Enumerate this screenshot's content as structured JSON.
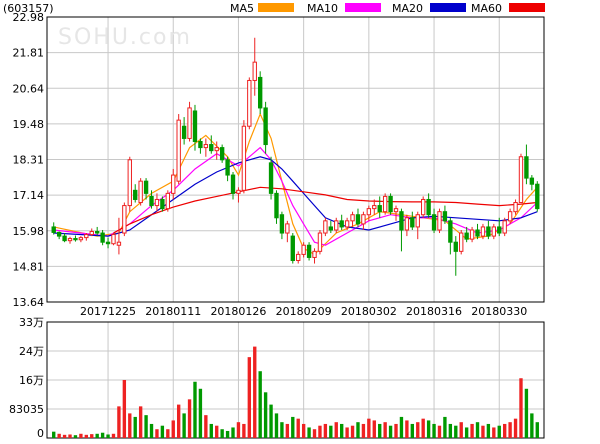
{
  "header": {
    "code": "(603157)",
    "legend": [
      {
        "label": "MA5",
        "color": "#ff9900"
      },
      {
        "label": "MA10",
        "color": "#ff00ff"
      },
      {
        "label": "MA20",
        "color": "#0000cc"
      },
      {
        "label": "MA60",
        "color": "#ee0000"
      }
    ]
  },
  "watermark": "SOHU.com",
  "colors": {
    "up": "#ee2222",
    "down": "#009900",
    "grid": "#c8c8c8",
    "axis": "#000000"
  },
  "chart_data": [
    {
      "type": "candlestick",
      "y_ticks": [
        "22.98",
        "21.81",
        "20.64",
        "19.48",
        "18.31",
        "17.14",
        "15.98",
        "14.81",
        "13.64"
      ],
      "ylim": [
        13.64,
        22.98
      ],
      "x_tick_labels": [
        "20171225",
        "20180111",
        "20180126",
        "20180209",
        "20180302",
        "20180316",
        "20180330"
      ],
      "x_tick_index": [
        10,
        22,
        34,
        46,
        58,
        70,
        82
      ],
      "ohlc": [
        [
          16.1,
          16.25,
          15.85,
          15.92
        ],
        [
          15.92,
          15.95,
          15.7,
          15.8
        ],
        [
          15.8,
          15.9,
          15.6,
          15.65
        ],
        [
          15.65,
          15.78,
          15.55,
          15.72
        ],
        [
          15.72,
          15.82,
          15.62,
          15.68
        ],
        [
          15.68,
          15.8,
          15.6,
          15.75
        ],
        [
          15.75,
          15.9,
          15.65,
          15.85
        ],
        [
          15.85,
          16.05,
          15.8,
          15.95
        ],
        [
          15.95,
          16.1,
          15.82,
          15.9
        ],
        [
          15.9,
          16.0,
          15.5,
          15.6
        ],
        [
          15.6,
          15.75,
          15.4,
          15.55
        ],
        [
          15.55,
          15.9,
          15.5,
          15.85
        ],
        [
          15.5,
          16.4,
          15.2,
          15.6
        ],
        [
          15.9,
          16.9,
          15.8,
          16.8
        ],
        [
          16.8,
          18.4,
          16.6,
          18.3
        ],
        [
          17.3,
          17.5,
          16.9,
          17.0
        ],
        [
          16.9,
          17.7,
          16.8,
          17.6
        ],
        [
          17.6,
          17.7,
          17.0,
          17.2
        ],
        [
          17.1,
          17.3,
          16.7,
          16.8
        ],
        [
          16.8,
          17.2,
          16.6,
          17.0
        ],
        [
          17.0,
          17.1,
          16.6,
          16.7
        ],
        [
          16.7,
          17.3,
          16.6,
          17.2
        ],
        [
          17.2,
          18.0,
          17.0,
          17.8
        ],
        [
          17.6,
          19.8,
          17.5,
          19.6
        ],
        [
          19.4,
          19.7,
          18.8,
          19.0
        ],
        [
          19.0,
          20.2,
          18.9,
          20.0
        ],
        [
          19.9,
          20.1,
          18.6,
          18.9
        ],
        [
          18.9,
          19.0,
          18.5,
          18.7
        ],
        [
          18.7,
          19.0,
          18.4,
          18.8
        ],
        [
          18.8,
          19.1,
          18.5,
          18.6
        ],
        [
          18.6,
          18.9,
          18.3,
          18.7
        ],
        [
          18.7,
          18.8,
          18.2,
          18.3
        ],
        [
          18.3,
          18.4,
          17.6,
          17.8
        ],
        [
          17.8,
          17.9,
          17.0,
          17.2
        ],
        [
          17.2,
          17.4,
          16.9,
          17.3
        ],
        [
          17.3,
          19.6,
          17.2,
          19.4
        ],
        [
          19.4,
          21.0,
          19.3,
          20.9
        ],
        [
          20.9,
          22.3,
          20.4,
          21.5
        ],
        [
          21.0,
          21.2,
          19.8,
          20.0
        ],
        [
          20.0,
          20.2,
          18.5,
          18.8
        ],
        [
          18.2,
          18.4,
          17.0,
          17.2
        ],
        [
          17.2,
          17.3,
          16.2,
          16.4
        ],
        [
          16.5,
          16.6,
          15.7,
          15.9
        ],
        [
          15.9,
          16.3,
          15.6,
          16.2
        ],
        [
          15.8,
          15.9,
          14.9,
          15.0
        ],
        [
          15.0,
          15.3,
          14.9,
          15.2
        ],
        [
          15.2,
          15.6,
          15.1,
          15.5
        ],
        [
          15.5,
          15.6,
          15.0,
          15.1
        ],
        [
          15.1,
          15.4,
          14.9,
          15.3
        ],
        [
          15.3,
          16.0,
          15.2,
          15.9
        ],
        [
          15.9,
          16.4,
          15.8,
          16.3
        ],
        [
          16.1,
          16.3,
          15.9,
          16.0
        ],
        [
          16.0,
          16.4,
          15.9,
          16.3
        ],
        [
          16.3,
          16.5,
          16.0,
          16.1
        ],
        [
          16.1,
          16.4,
          16.0,
          16.3
        ],
        [
          16.3,
          16.6,
          16.1,
          16.5
        ],
        [
          16.5,
          16.7,
          16.1,
          16.2
        ],
        [
          16.2,
          16.6,
          16.0,
          16.5
        ],
        [
          16.5,
          16.8,
          16.3,
          16.7
        ],
        [
          16.7,
          17.0,
          16.5,
          16.8
        ],
        [
          16.8,
          17.1,
          16.4,
          16.6
        ],
        [
          16.6,
          17.2,
          16.5,
          17.1
        ],
        [
          17.1,
          17.2,
          16.5,
          16.6
        ],
        [
          16.6,
          16.8,
          16.3,
          16.7
        ],
        [
          16.6,
          16.7,
          15.3,
          16.0
        ],
        [
          16.0,
          16.5,
          15.8,
          16.4
        ],
        [
          16.4,
          16.6,
          16.0,
          16.1
        ],
        [
          16.1,
          16.6,
          15.7,
          16.5
        ],
        [
          16.5,
          17.1,
          16.4,
          17.0
        ],
        [
          17.0,
          17.2,
          16.4,
          16.5
        ],
        [
          16.5,
          16.7,
          15.9,
          16.0
        ],
        [
          16.0,
          16.7,
          15.9,
          16.6
        ],
        [
          16.6,
          16.8,
          16.2,
          16.3
        ],
        [
          16.3,
          16.4,
          15.2,
          15.6
        ],
        [
          15.6,
          15.8,
          14.5,
          15.3
        ],
        [
          15.3,
          16.0,
          15.2,
          15.9
        ],
        [
          15.9,
          16.1,
          15.6,
          15.7
        ],
        [
          15.7,
          16.1,
          15.6,
          16.0
        ],
        [
          16.0,
          16.2,
          15.7,
          15.8
        ],
        [
          15.8,
          16.2,
          15.7,
          16.1
        ],
        [
          16.1,
          16.3,
          15.7,
          15.8
        ],
        [
          15.8,
          16.2,
          15.7,
          16.1
        ],
        [
          16.1,
          16.4,
          15.8,
          15.9
        ],
        [
          15.9,
          16.4,
          15.8,
          16.3
        ],
        [
          16.3,
          16.7,
          16.2,
          16.6
        ],
        [
          16.6,
          17.0,
          16.5,
          16.9
        ],
        [
          16.9,
          18.5,
          16.9,
          18.4
        ],
        [
          18.4,
          18.8,
          17.5,
          17.7
        ],
        [
          17.7,
          17.8,
          17.3,
          17.5
        ],
        [
          17.5,
          17.6,
          16.6,
          16.7
        ]
      ],
      "ma": {
        "MA5": [
          [
            0,
            16.1
          ],
          [
            8,
            15.8
          ],
          [
            12,
            15.9
          ],
          [
            14,
            16.6
          ],
          [
            18,
            17.2
          ],
          [
            22,
            17.6
          ],
          [
            25,
            18.7
          ],
          [
            28,
            19.1
          ],
          [
            32,
            18.4
          ],
          [
            34,
            17.8
          ],
          [
            36,
            18.9
          ],
          [
            38,
            19.8
          ],
          [
            40,
            19.0
          ],
          [
            42,
            17.6
          ],
          [
            44,
            16.2
          ],
          [
            46,
            15.4
          ],
          [
            48,
            15.2
          ],
          [
            52,
            15.9
          ],
          [
            56,
            16.2
          ],
          [
            60,
            16.6
          ],
          [
            64,
            16.5
          ],
          [
            68,
            16.4
          ],
          [
            72,
            16.3
          ],
          [
            76,
            15.7
          ],
          [
            80,
            15.8
          ],
          [
            84,
            16.2
          ],
          [
            87,
            17.0
          ],
          [
            89,
            17.4
          ]
        ],
        "MA10": [
          [
            0,
            16.0
          ],
          [
            10,
            15.8
          ],
          [
            14,
            16.2
          ],
          [
            18,
            16.8
          ],
          [
            22,
            17.3
          ],
          [
            26,
            18.0
          ],
          [
            30,
            18.5
          ],
          [
            34,
            18.1
          ],
          [
            36,
            18.4
          ],
          [
            38,
            18.7
          ],
          [
            40,
            18.3
          ],
          [
            42,
            17.6
          ],
          [
            44,
            16.8
          ],
          [
            46,
            16.2
          ],
          [
            48,
            15.6
          ],
          [
            50,
            15.5
          ],
          [
            54,
            15.9
          ],
          [
            58,
            16.3
          ],
          [
            62,
            16.5
          ],
          [
            66,
            16.4
          ],
          [
            70,
            16.4
          ],
          [
            74,
            16.2
          ],
          [
            78,
            15.9
          ],
          [
            82,
            16.0
          ],
          [
            86,
            16.4
          ],
          [
            89,
            16.9
          ]
        ],
        "MA20": [
          [
            0,
            15.9
          ],
          [
            10,
            15.8
          ],
          [
            14,
            16.0
          ],
          [
            18,
            16.5
          ],
          [
            22,
            17.0
          ],
          [
            26,
            17.5
          ],
          [
            30,
            17.9
          ],
          [
            34,
            18.2
          ],
          [
            38,
            18.4
          ],
          [
            40,
            18.3
          ],
          [
            42,
            18.0
          ],
          [
            44,
            17.6
          ],
          [
            46,
            17.2
          ],
          [
            48,
            16.8
          ],
          [
            50,
            16.4
          ],
          [
            54,
            16.1
          ],
          [
            58,
            16.0
          ],
          [
            62,
            16.2
          ],
          [
            66,
            16.4
          ],
          [
            70,
            16.45
          ],
          [
            74,
            16.4
          ],
          [
            78,
            16.35
          ],
          [
            82,
            16.3
          ],
          [
            86,
            16.4
          ],
          [
            89,
            16.6
          ]
        ],
        "MA60": [
          [
            11,
            15.9
          ],
          [
            14,
            16.2
          ],
          [
            18,
            16.5
          ],
          [
            22,
            16.75
          ],
          [
            26,
            16.95
          ],
          [
            30,
            17.1
          ],
          [
            34,
            17.25
          ],
          [
            38,
            17.4
          ],
          [
            42,
            17.35
          ],
          [
            46,
            17.25
          ],
          [
            50,
            17.15
          ],
          [
            54,
            17.0
          ],
          [
            58,
            16.95
          ],
          [
            62,
            16.93
          ],
          [
            66,
            16.92
          ],
          [
            70,
            16.92
          ],
          [
            74,
            16.9
          ],
          [
            78,
            16.85
          ],
          [
            82,
            16.8
          ],
          [
            86,
            16.85
          ],
          [
            89,
            16.9
          ]
        ]
      }
    },
    {
      "type": "bar",
      "title": "volume",
      "y_ticks": [
        "33万",
        "24万",
        "16万",
        "83035",
        "0"
      ],
      "ylim": [
        0,
        330000
      ],
      "values": [
        18000,
        12000,
        9000,
        10000,
        8000,
        12000,
        9000,
        11000,
        12000,
        15000,
        10000,
        12000,
        90000,
        165000,
        70000,
        60000,
        90000,
        65000,
        40000,
        25000,
        35000,
        25000,
        50000,
        95000,
        70000,
        110000,
        160000,
        140000,
        65000,
        40000,
        35000,
        25000,
        20000,
        30000,
        45000,
        40000,
        230000,
        260000,
        190000,
        130000,
        95000,
        70000,
        45000,
        40000,
        60000,
        55000,
        40000,
        30000,
        25000,
        35000,
        40000,
        35000,
        45000,
        40000,
        30000,
        35000,
        45000,
        40000,
        55000,
        50000,
        40000,
        45000,
        35000,
        40000,
        60000,
        50000,
        40000,
        45000,
        55000,
        50000,
        40000,
        35000,
        60000,
        40000,
        35000,
        45000,
        30000,
        40000,
        45000,
        35000,
        40000,
        30000,
        35000,
        40000,
        45000,
        55000,
        170000,
        140000,
        70000,
        45000
      ],
      "up": [
        false,
        true,
        true,
        true,
        false,
        true,
        true,
        true,
        false,
        false,
        false,
        true,
        true,
        true,
        true,
        false,
        true,
        false,
        false,
        true,
        false,
        true,
        true,
        true,
        false,
        true,
        false,
        false,
        true,
        false,
        true,
        false,
        false,
        false,
        true,
        true,
        true,
        true,
        false,
        false,
        false,
        false,
        false,
        true,
        false,
        true,
        true,
        false,
        true,
        true,
        true,
        false,
        true,
        false,
        true,
        true,
        false,
        true,
        true,
        true,
        false,
        true,
        false,
        true,
        false,
        true,
        false,
        true,
        true,
        false,
        false,
        true,
        false,
        false,
        false,
        true,
        false,
        true,
        false,
        true,
        false,
        true,
        false,
        true,
        true,
        true,
        true,
        false,
        false,
        false
      ]
    }
  ]
}
